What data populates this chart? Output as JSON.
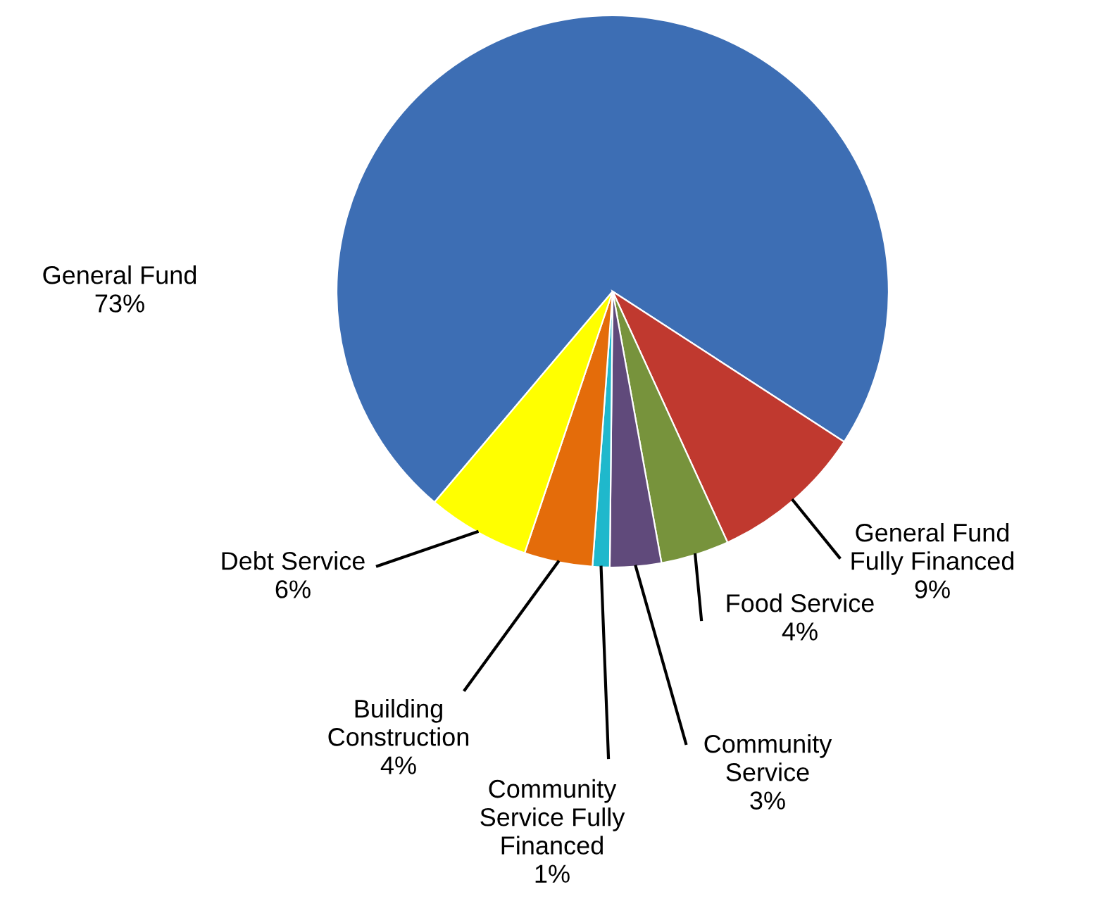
{
  "chart_data": {
    "type": "pie",
    "categories": [
      "General Fund",
      "General Fund Fully Financed",
      "Food Service",
      "Community Service",
      "Community Service Fully Financed",
      "Building Construction",
      "Debt Service"
    ],
    "values": [
      73,
      9,
      4,
      3,
      1,
      4,
      6
    ],
    "colors": [
      "#3d6eb4",
      "#c0392f",
      "#77933c",
      "#604a7b",
      "#1fb8cc",
      "#e46c0a",
      "#ffff00"
    ],
    "value_labels": [
      "73%",
      "9%",
      "4%",
      "3%",
      "1%",
      "4%",
      "6%"
    ]
  }
}
